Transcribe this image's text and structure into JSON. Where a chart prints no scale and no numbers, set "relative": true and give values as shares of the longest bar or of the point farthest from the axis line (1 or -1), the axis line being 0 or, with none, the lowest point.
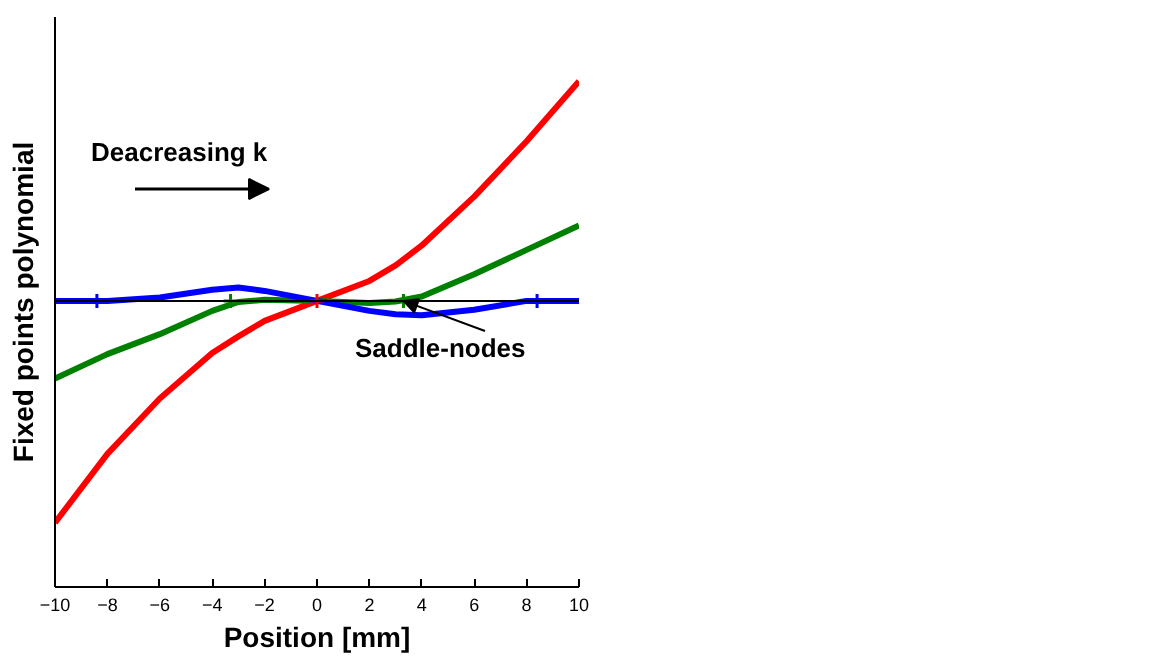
{
  "chart_data": {
    "type": "line",
    "relative": true,
    "xlabel": "Position [mm]",
    "ylabel": "Fixed points polynomial",
    "x": [
      -10,
      -8,
      -6,
      -4,
      -3,
      -2,
      0,
      2,
      3,
      4,
      6,
      8,
      10
    ],
    "xlim": [
      -10,
      10
    ],
    "xticks": [
      -10,
      -8,
      -6,
      -4,
      -2,
      0,
      2,
      4,
      6,
      8,
      10
    ],
    "grid": false,
    "line_style": "solid",
    "series": [
      {
        "color": "#ff0000",
        "values": [
          -1.0,
          -0.69,
          -0.44,
          -0.235,
          -0.16,
          -0.09,
          0,
          0.09,
          0.16,
          0.25,
          0.47,
          0.72,
          0.99
        ]
      },
      {
        "color": "#008000",
        "values": [
          -0.35,
          -0.24,
          -0.15,
          -0.045,
          -0.005,
          0.005,
          0,
          -0.01,
          -0.003,
          0.02,
          0.12,
          0.23,
          0.34
        ]
      },
      {
        "color": "#0000ff",
        "values": [
          0,
          0,
          0.015,
          0.05,
          0.06,
          0.045,
          0,
          -0.045,
          -0.06,
          -0.065,
          -0.04,
          0,
          0
        ]
      },
      {
        "type": "scatter",
        "marker": "cross",
        "color": "#ff0000",
        "x": [
          0
        ],
        "values": [
          0
        ]
      },
      {
        "type": "scatter",
        "marker": "cross",
        "color": "#008000",
        "x": [
          -3.3,
          3.3
        ],
        "values": [
          0,
          0
        ]
      },
      {
        "type": "scatter",
        "marker": "cross",
        "color": "#0000ff",
        "x": [
          -8.4,
          8.4
        ],
        "values": [
          0,
          0
        ]
      }
    ],
    "ref_lines": [
      {
        "axis": "y",
        "value": 0,
        "color": "#000000"
      }
    ],
    "annotations": [
      "Deacreasing k",
      {
        "text": "Saddle-nodes",
        "x": 3.3,
        "y": 0
      }
    ]
  }
}
